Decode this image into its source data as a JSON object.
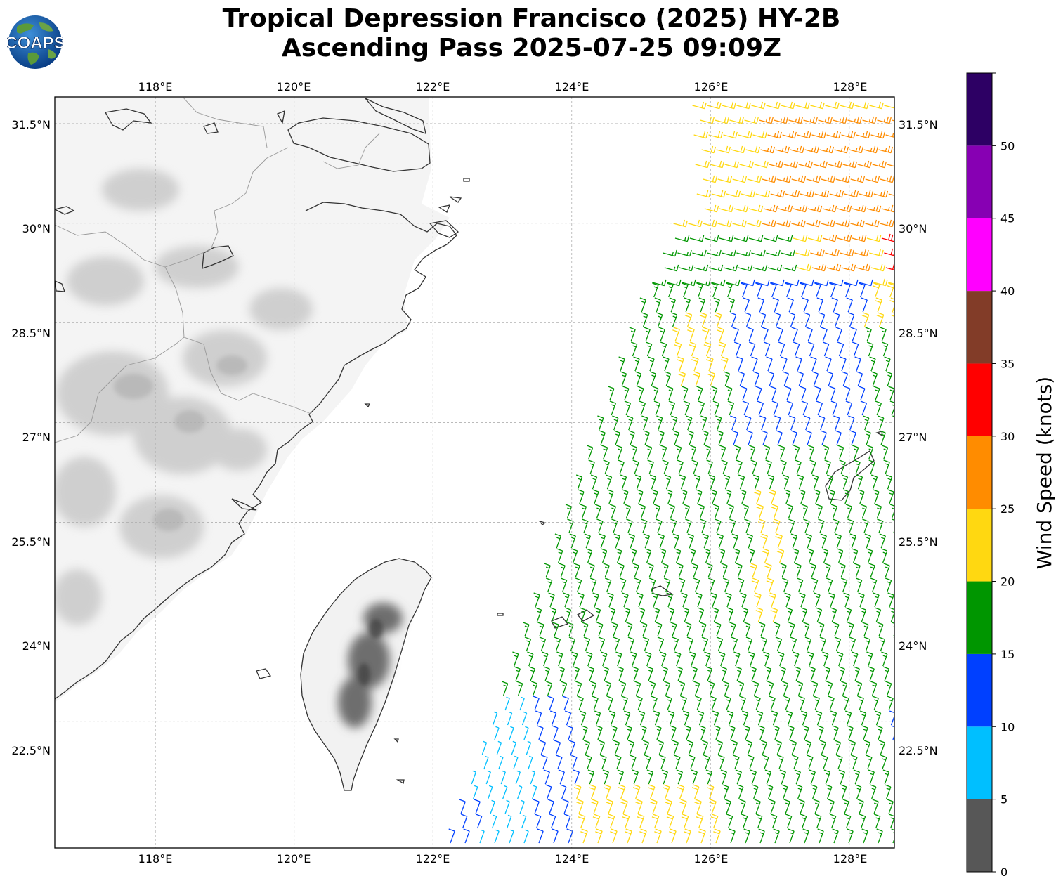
{
  "title": {
    "line1": "Tropical Depression Francisco (2025) HY-2B",
    "line2": "Ascending Pass 2025-07-25 09:09Z"
  },
  "logo": {
    "text": "COAPS"
  },
  "map": {
    "lon_range": [
      116.55,
      128.65
    ],
    "lat_range": [
      20.6,
      31.9
    ],
    "lon_ticks": [
      "118°E",
      "120°E",
      "122°E",
      "124°E",
      "126°E",
      "128°E"
    ],
    "lat_ticks": [
      "31.5°N",
      "30°N",
      "28.5°N",
      "27°N",
      "25.5°N",
      "24°N",
      "22.5°N"
    ],
    "gridlines": true,
    "colors": {
      "coast": "#333333",
      "border": "#999999",
      "grid": "#b0b0b0"
    }
  },
  "colorbar": {
    "label": "Wind Speed (knots)",
    "tick_labels": [
      "0",
      "5",
      "10",
      "15",
      "20",
      "25",
      "30",
      "35",
      "40",
      "45",
      "50"
    ],
    "bins": [
      {
        "range": [
          0,
          5
        ],
        "color": "#575757"
      },
      {
        "range": [
          5,
          10
        ],
        "color": "#00bfff"
      },
      {
        "range": [
          10,
          15
        ],
        "color": "#0040ff"
      },
      {
        "range": [
          15,
          20
        ],
        "color": "#009600"
      },
      {
        "range": [
          20,
          25
        ],
        "color": "#ffd811"
      },
      {
        "range": [
          25,
          30
        ],
        "color": "#ff8c00"
      },
      {
        "range": [
          30,
          35
        ],
        "color": "#ff0000"
      },
      {
        "range": [
          35,
          40
        ],
        "color": "#823c28"
      },
      {
        "range": [
          40,
          45
        ],
        "color": "#ff00ff"
      },
      {
        "range": [
          45,
          50
        ],
        "color": "#8700b3"
      },
      {
        "range": [
          50,
          55
        ],
        "color": "#2d0064"
      }
    ]
  }
}
